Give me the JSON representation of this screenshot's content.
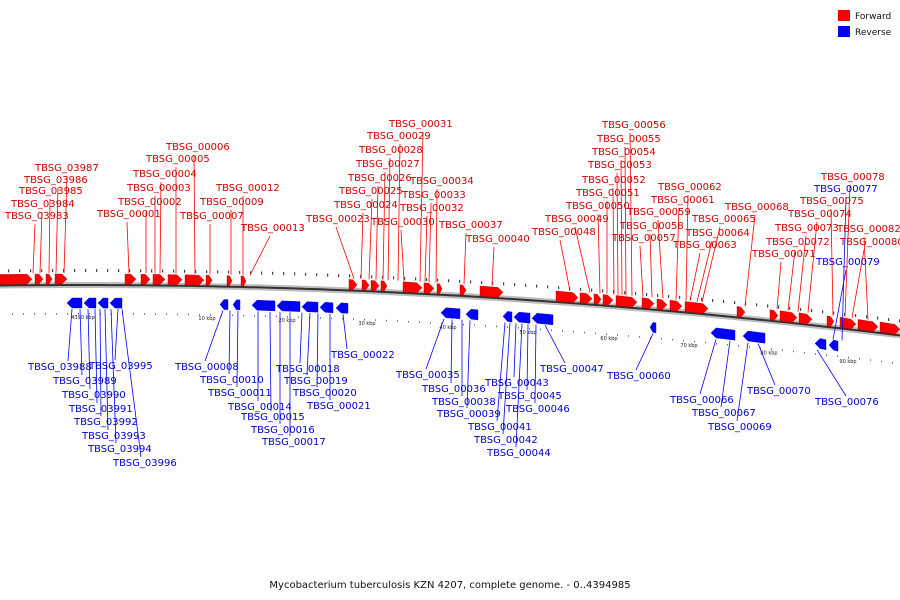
{
  "caption": "Mycobacterium tuberculosis KZN 4207, complete genome. - 0..4394985",
  "legend": [
    {
      "label": "Forward",
      "color": "#ff0000"
    },
    {
      "label": "Reverse",
      "color": "#0000ff"
    }
  ],
  "ticks": [
    "4390 kbp",
    "10 kbp",
    "20 kbp",
    "30 kbp",
    "40 kbp",
    "50 kbp",
    "60 kbp",
    "70 kbp",
    "80 kbp",
    "90 kbp"
  ],
  "forward_genes": [
    "TBSG_03987",
    "TBSG_03986",
    "TBSG_03985",
    "TBSG_03984",
    "TBSG_03983",
    "TBSG_00006",
    "TBSG_00005",
    "TBSG_00004",
    "TBSG_00003",
    "TBSG_00002",
    "TBSG_00001",
    "TBSG_00012",
    "TBSG_00009",
    "TBSG_00007",
    "TBSG_00013",
    "TBSG_00031",
    "TBSG_00029",
    "TBSG_00028",
    "TBSG_00027",
    "TBSG_00026",
    "TBSG_00025",
    "TBSG_00024",
    "TBSG_00023",
    "TBSG_00034",
    "TBSG_00033",
    "TBSG_00032",
    "TBSG_00030",
    "TBSG_00037",
    "TBSG_00040",
    "TBSG_00056",
    "TBSG_00055",
    "TBSG_00054",
    "TBSG_00053",
    "TBSG_00052",
    "TBSG_00051",
    "TBSG_00050",
    "TBSG_00049",
    "TBSG_00048",
    "TBSG_00062",
    "TBSG_00061",
    "TBSG_00059",
    "TBSG_00058",
    "TBSG_00057",
    "TBSG_00065",
    "TBSG_00064",
    "TBSG_00063",
    "TBSG_00068",
    "TBSG_00078",
    "TBSG_00075",
    "TBSG_00074",
    "TBSG_00073",
    "TBSG_00072",
    "TBSG_00071",
    "TBSG_00082",
    "TBSG_00080"
  ],
  "reverse_genes": [
    "TBSG_03988",
    "TBSG_03989",
    "TBSG_03990",
    "TBSG_03991",
    "TBSG_03992",
    "TBSG_03993",
    "TBSG_03994",
    "TBSG_03995",
    "TBSG_03996",
    "TBSG_00008",
    "TBSG_00010",
    "TBSG_00011",
    "TBSG_00014",
    "TBSG_00015",
    "TBSG_00016",
    "TBSG_00017",
    "TBSG_00018",
    "TBSG_00019",
    "TBSG_00020",
    "TBSG_00021",
    "TBSG_00022",
    "TBSG_00035",
    "TBSG_00036",
    "TBSG_00038",
    "TBSG_00039",
    "TBSG_00041",
    "TBSG_00042",
    "TBSG_00043",
    "TBSG_00044",
    "TBSG_00045",
    "TBSG_00046",
    "TBSG_00047",
    "TBSG_00060",
    "TBSG_00066",
    "TBSG_00067",
    "TBSG_00069",
    "TBSG_00070",
    "TBSG_00076",
    "TBSG_00077",
    "TBSG_00079"
  ]
}
